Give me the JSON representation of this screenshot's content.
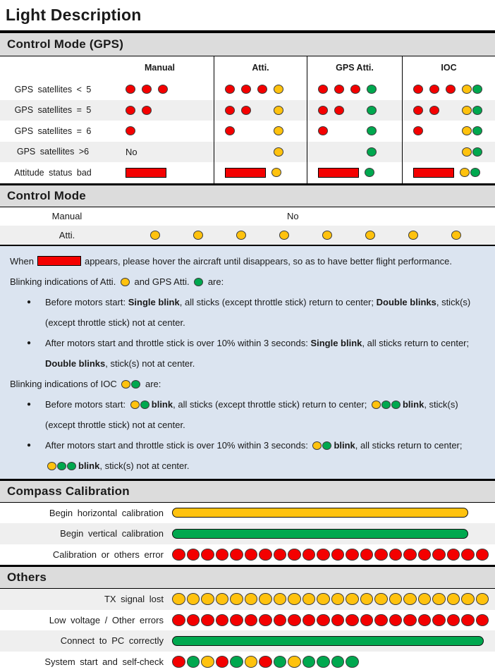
{
  "title": "Light Description",
  "colors": {
    "red": "#f40000",
    "yellow": "#ffc20e",
    "green": "#00a84f",
    "band_bg": "#dcdcdc",
    "row_alt_bg": "#efefef",
    "info_bg": "#dbe4f0"
  },
  "sections": {
    "gps": {
      "header": "Control Mode (GPS)",
      "columns": [
        "Manual",
        "Atti.",
        "GPS Atti.",
        "IOC"
      ],
      "rows": [
        {
          "label": "GPS satellites < 5",
          "cells": [
            [
              "R",
              "R",
              "R"
            ],
            [
              "R",
              "R",
              "R",
              "Y"
            ],
            [
              "R",
              "R",
              "R",
              "G"
            ],
            [
              "R",
              "R",
              "R",
              "YG"
            ]
          ]
        },
        {
          "label": "GPS satellites = 5",
          "cells": [
            [
              "R",
              "R"
            ],
            [
              "R",
              "R",
              "_",
              "Y"
            ],
            [
              "R",
              "R",
              "_",
              "G"
            ],
            [
              "R",
              "R",
              "_",
              "YG"
            ]
          ]
        },
        {
          "label": "GPS satellites = 6",
          "cells": [
            [
              "R"
            ],
            [
              "R",
              "_",
              "_",
              "Y"
            ],
            [
              "R",
              "_",
              "_",
              "G"
            ],
            [
              "R",
              "_",
              "_",
              "YG"
            ]
          ]
        },
        {
          "label": "GPS satellites >6",
          "cells": [
            [
              "NO"
            ],
            [
              "_",
              "_",
              "_",
              "Y"
            ],
            [
              "_",
              "_",
              "_",
              "G"
            ],
            [
              "_",
              "_",
              "_",
              "YG"
            ]
          ]
        },
        {
          "label": "Attitude status bad",
          "cells": [
            [
              "BAR"
            ],
            [
              "BAR",
              "Y"
            ],
            [
              "BAR",
              "G"
            ],
            [
              "BAR",
              "YG"
            ]
          ]
        }
      ],
      "no_text": "No"
    },
    "control_mode": {
      "header": "Control Mode",
      "manual_label": "Manual",
      "manual_value": "No",
      "atti_label": "Atti.",
      "atti_dots": "YYYYYYYY"
    },
    "info_box": {
      "lines": [
        {
          "bullet": false,
          "seg": [
            {
              "t": "tx",
              "v": "When"
            },
            {
              "t": "bar"
            },
            {
              "t": "tx",
              "v": "appears, please hover the aircraft until disappears, so as to have better flight performance."
            }
          ]
        },
        {
          "bullet": false,
          "seg": [
            {
              "t": "tx",
              "v": "Blinking indications of Atti. "
            },
            {
              "t": "dots",
              "v": "Y"
            },
            {
              "t": "tx",
              "v": " and GPS Atti. "
            },
            {
              "t": "dots",
              "v": "G"
            },
            {
              "t": "tx",
              "v": " are:"
            }
          ]
        },
        {
          "bullet": true,
          "seg": [
            {
              "t": "tx",
              "v": "Before motors start: "
            },
            {
              "t": "b",
              "v": "Single blink"
            },
            {
              "t": "tx",
              "v": ", all sticks (except throttle stick) return to center; "
            },
            {
              "t": "b",
              "v": "Double blinks"
            },
            {
              "t": "tx",
              "v": ", stick(s) (except throttle stick) not at center."
            }
          ]
        },
        {
          "bullet": true,
          "seg": [
            {
              "t": "tx",
              "v": "After motors start and throttle stick is over 10% within 3 seconds: "
            },
            {
              "t": "b",
              "v": "Single blink"
            },
            {
              "t": "tx",
              "v": ", all sticks return to center; "
            },
            {
              "t": "b",
              "v": "Double blinks"
            },
            {
              "t": "tx",
              "v": ", stick(s) not at center."
            }
          ]
        },
        {
          "bullet": false,
          "seg": [
            {
              "t": "tx",
              "v": "Blinking indications of IOC "
            },
            {
              "t": "dots",
              "v": "YG"
            },
            {
              "t": "tx",
              "v": " are:"
            }
          ]
        },
        {
          "bullet": true,
          "seg": [
            {
              "t": "tx",
              "v": "Before motors start: "
            },
            {
              "t": "dots",
              "v": "YG"
            },
            {
              "t": "b",
              "v": "blink"
            },
            {
              "t": "tx",
              "v": ", all sticks (except throttle stick) return to center; "
            },
            {
              "t": "dots",
              "v": "YGG"
            },
            {
              "t": "b",
              "v": "blink"
            },
            {
              "t": "tx",
              "v": ", stick(s) (except throttle stick) not at center."
            }
          ]
        },
        {
          "bullet": true,
          "seg": [
            {
              "t": "tx",
              "v": "After motors start and throttle stick is over 10% within 3 seconds: "
            },
            {
              "t": "dots",
              "v": "YG"
            },
            {
              "t": "b",
              "v": "blink"
            },
            {
              "t": "tx",
              "v": ", all sticks return to center; "
            },
            {
              "t": "dots",
              "v": "YGG"
            },
            {
              "t": "b",
              "v": "blink"
            },
            {
              "t": "tx",
              "v": ", stick(s) not at center."
            }
          ]
        }
      ]
    },
    "compass": {
      "header": "Compass Calibration",
      "rows": [
        {
          "label": "Begin horizontal calibration",
          "pill": "Y",
          "pill_width": 420,
          "shade": false
        },
        {
          "label": "Begin vertical calibration",
          "pill": "G",
          "pill_width": 420,
          "shade": true
        },
        {
          "label": "Calibration or others error",
          "pattern": "RRRRRRRRRRRRRRRRRRRRRR",
          "shade": false
        }
      ]
    },
    "others": {
      "header": "Others",
      "rows": [
        {
          "label": "TX signal lost",
          "pattern": "YYYYYYYYYYYYYYYYYYYYYY",
          "shade": true
        },
        {
          "label": "Low voltage / Other errors",
          "pattern": "RRRRRRRRRRRRRRRRRRRRRR",
          "shade": false
        },
        {
          "label": "Connect to PC correctly",
          "pill": "G",
          "pill_width": 442,
          "shade": true
        },
        {
          "label": "System start and self-check",
          "pattern": "RGYRGYRGYGGGG",
          "shade": false
        }
      ]
    }
  }
}
